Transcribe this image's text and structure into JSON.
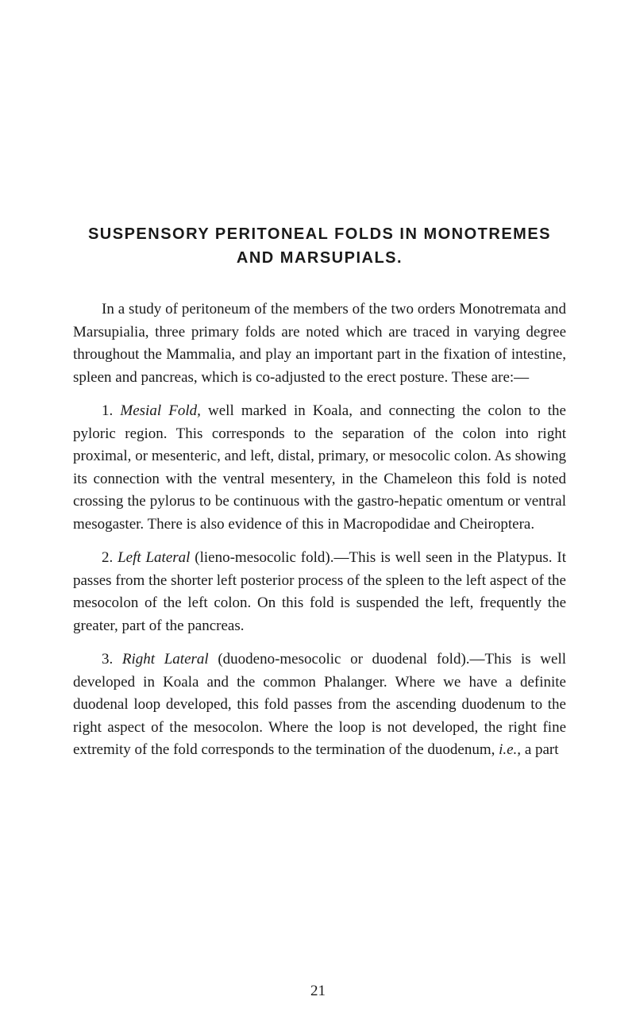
{
  "title_line1": "SUSPENSORY PERITONEAL FOLDS IN MONOTREMES",
  "title_line2": "AND MARSUPIALS.",
  "para1": "In a study of peritoneum of the members of the two orders Monotremata and Marsupialia, three primary folds are noted which are traced in varying degree throughout the Mammalia, and play an important part in the fixation of intestine, spleen and pancreas, which is co-adjusted to the erect posture. These are:—",
  "para2_prefix": "1. ",
  "para2_italic": "Mesial Fold,",
  "para2_rest": " well marked in Koala, and connecting the colon to the pyloric region. This corresponds to the separation of the colon into right proximal, or mesenteric, and left, distal, primary, or mesocolic colon. As showing its connection with the ventral mesentery, in the Chameleon this fold is noted crossing the pylorus to be continuous with the gastro-hepatic omentum or ventral mesogaster. There is also evidence of this in Macropodidae and Cheiroptera.",
  "para3_prefix": "2. ",
  "para3_italic": "Left Lateral",
  "para3_rest": " (lieno-mesocolic fold).—This is well seen in the Platypus. It passes from the shorter left posterior process of the spleen to the left aspect of the mesocolon of the left colon. On this fold is suspended the left, frequently the greater, part of the pancreas.",
  "para4_prefix": "3. ",
  "para4_italic": "Right Lateral",
  "para4_mid": " (duodeno-mesocolic or duodenal fold).—This is well developed in Koala and the common Phalanger. Where we have a definite duodenal loop developed, this fold passes from the ascending duodenum to the right aspect of the mesocolon. Where the loop is not developed, the right fine extremity of the fold corresponds to the termination of the duodenum, ",
  "para4_italic2": "i.e.,",
  "para4_end": " a part",
  "page_number": "21"
}
